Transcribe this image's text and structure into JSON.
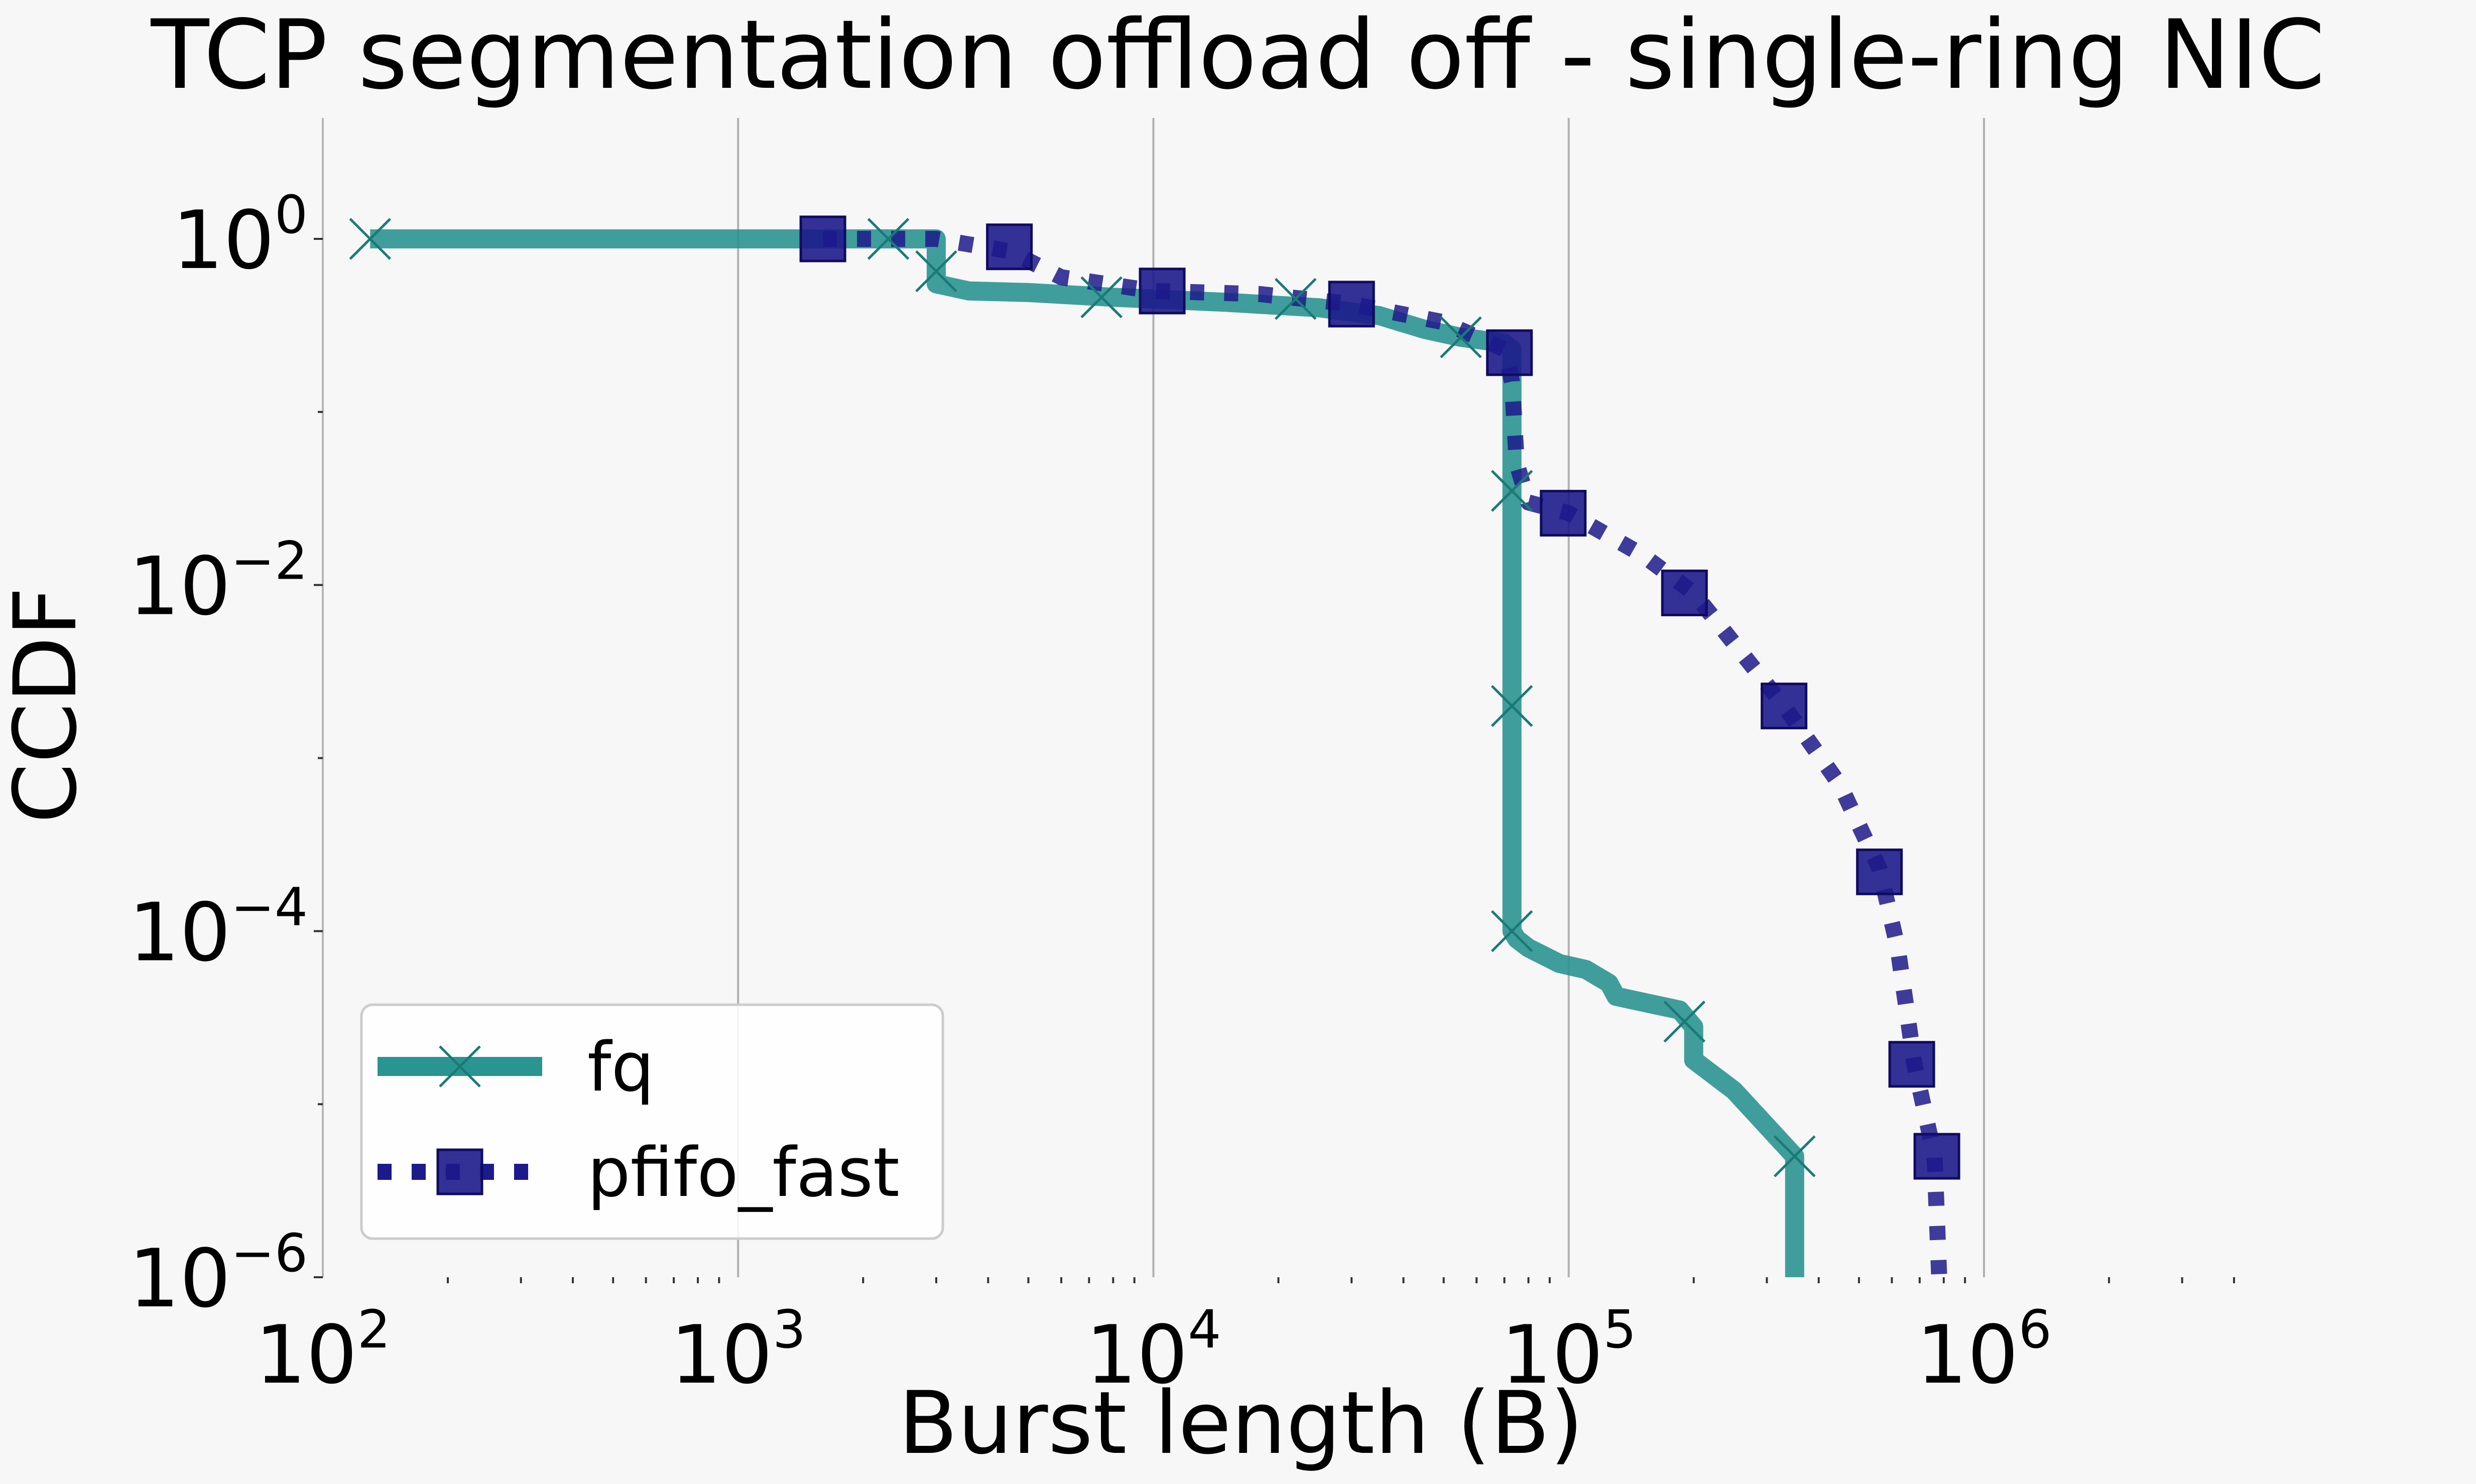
{
  "chart_data": {
    "type": "line",
    "title": "TCP segmentation offload off - single-ring NIC",
    "xlabel": "Burst length (B)",
    "ylabel": "CCDF",
    "xscale": "log",
    "yscale": "log",
    "xlim": [
      100,
      4000000
    ],
    "ylim": [
      1e-06,
      5
    ],
    "grid": "vertical major lines",
    "legend_position": "lower-left",
    "x_ticks": [
      {
        "value": 100,
        "base": "10",
        "exp": "2"
      },
      {
        "value": 1000,
        "base": "10",
        "exp": "3"
      },
      {
        "value": 10000,
        "base": "10",
        "exp": "4"
      },
      {
        "value": 100000,
        "base": "10",
        "exp": "5"
      },
      {
        "value": 1000000,
        "base": "10",
        "exp": "6"
      }
    ],
    "y_ticks": [
      {
        "value": 1,
        "base": "10",
        "exp": "0"
      },
      {
        "value": 0.01,
        "base": "10",
        "exp": "−2"
      },
      {
        "value": 0.0001,
        "base": "10",
        "exp": "−4"
      },
      {
        "value": 1e-06,
        "base": "10",
        "exp": "−6"
      }
    ],
    "series": [
      {
        "name": "fq",
        "color": "#2a9490",
        "line_style": "solid",
        "marker": "x",
        "line": [
          [
            130,
            1.0
          ],
          [
            3000,
            1.0
          ],
          [
            3000,
            0.55
          ],
          [
            3600,
            0.5
          ],
          [
            5000,
            0.49
          ],
          [
            8000,
            0.46
          ],
          [
            15000,
            0.43
          ],
          [
            25000,
            0.4
          ],
          [
            35000,
            0.36
          ],
          [
            45000,
            0.3
          ],
          [
            55000,
            0.27
          ],
          [
            70000,
            0.25
          ],
          [
            73000,
            0.23
          ],
          [
            73000,
            0.035
          ],
          [
            73000,
            0.002
          ],
          [
            73000,
            0.0001
          ],
          [
            75000,
            9e-05
          ],
          [
            80000,
            8e-05
          ],
          [
            95000,
            6.5e-05
          ],
          [
            110000,
            6e-05
          ],
          [
            125000,
            5e-05
          ],
          [
            130000,
            4.2e-05
          ],
          [
            150000,
            3.9e-05
          ],
          [
            185000,
            3.5e-05
          ],
          [
            200000,
            2.8e-05
          ],
          [
            200000,
            1.8e-05
          ],
          [
            250000,
            1.2e-05
          ],
          [
            350000,
            5e-06
          ],
          [
            350000,
            1e-06
          ]
        ],
        "markers": [
          [
            130,
            1.0
          ],
          [
            2300,
            1.0
          ],
          [
            3000,
            0.65
          ],
          [
            7500,
            0.46
          ],
          [
            22000,
            0.45
          ],
          [
            55000,
            0.27
          ],
          [
            73000,
            0.035
          ],
          [
            73000,
            0.002
          ],
          [
            73000,
            0.0001
          ],
          [
            190000,
            3e-05
          ],
          [
            350000,
            5e-06
          ]
        ]
      },
      {
        "name": "pfifo_fast",
        "color": "#1d1a8b",
        "line_style": "dotted",
        "marker": "square",
        "line": [
          [
            1600,
            1.0
          ],
          [
            3000,
            1.0
          ],
          [
            4500,
            0.85
          ],
          [
            6000,
            0.6
          ],
          [
            10000,
            0.5
          ],
          [
            18000,
            0.48
          ],
          [
            30000,
            0.42
          ],
          [
            50000,
            0.33
          ],
          [
            70000,
            0.23
          ],
          [
            73000,
            0.15
          ],
          [
            75000,
            0.05
          ],
          [
            80000,
            0.03
          ],
          [
            100000,
            0.026
          ],
          [
            150000,
            0.015
          ],
          [
            200000,
            0.009
          ],
          [
            330000,
            0.002
          ],
          [
            450000,
            0.0007
          ],
          [
            560000,
            0.00023
          ],
          [
            620000,
            8e-05
          ],
          [
            680000,
            1.7e-05
          ],
          [
            760000,
            5e-06
          ],
          [
            780000,
            1e-06
          ]
        ],
        "markers": [
          [
            1600,
            1.0
          ],
          [
            4500,
            0.9
          ],
          [
            10500,
            0.5
          ],
          [
            30000,
            0.42
          ],
          [
            72000,
            0.22
          ],
          [
            97000,
            0.026
          ],
          [
            190000,
            0.009
          ],
          [
            330000,
            0.002
          ],
          [
            560000,
            0.00022
          ],
          [
            670000,
            1.7e-05
          ],
          [
            770000,
            5e-06
          ]
        ]
      }
    ]
  }
}
